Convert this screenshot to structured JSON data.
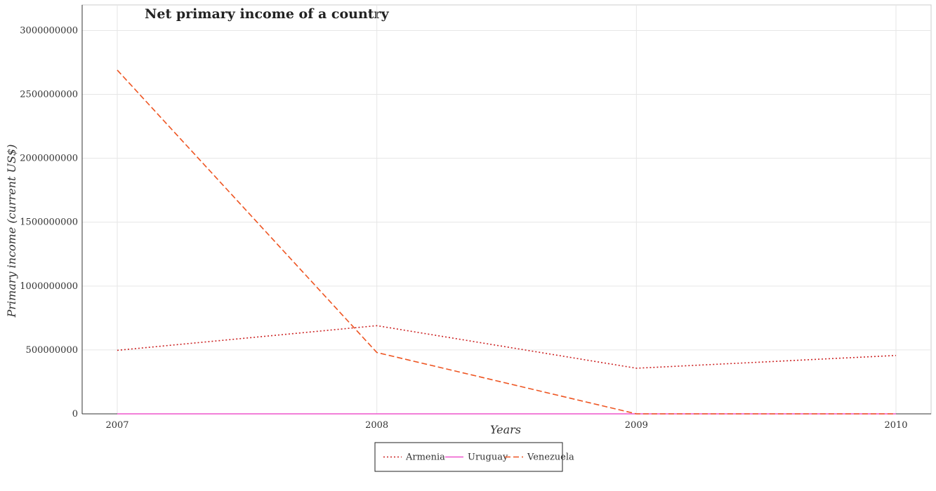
{
  "chart_data": {
    "type": "line",
    "title": "Net primary income of a country",
    "xlabel": "Years",
    "ylabel": "Primary income (current US$)",
    "categories": [
      "2007",
      "2008",
      "2009",
      "2010"
    ],
    "yticks": [
      "0",
      "500000000",
      "1000000000",
      "1500000000",
      "2000000000",
      "2500000000",
      "3000000000"
    ],
    "ylim": [
      0,
      3200000000
    ],
    "grid": true,
    "legend_position": "bottom-center",
    "series": [
      {
        "name": "Armenia",
        "color": "#cc2222",
        "style": "dotted",
        "values": [
          497000000,
          690000000,
          357000000,
          457000000
        ]
      },
      {
        "name": "Uruguay",
        "color": "#ee55cc",
        "style": "solid",
        "values": [
          0,
          0,
          0,
          0
        ]
      },
      {
        "name": "Venezuela",
        "color": "#ee5522",
        "style": "dashed",
        "values": [
          2690000000,
          480000000,
          0,
          0
        ]
      }
    ]
  }
}
